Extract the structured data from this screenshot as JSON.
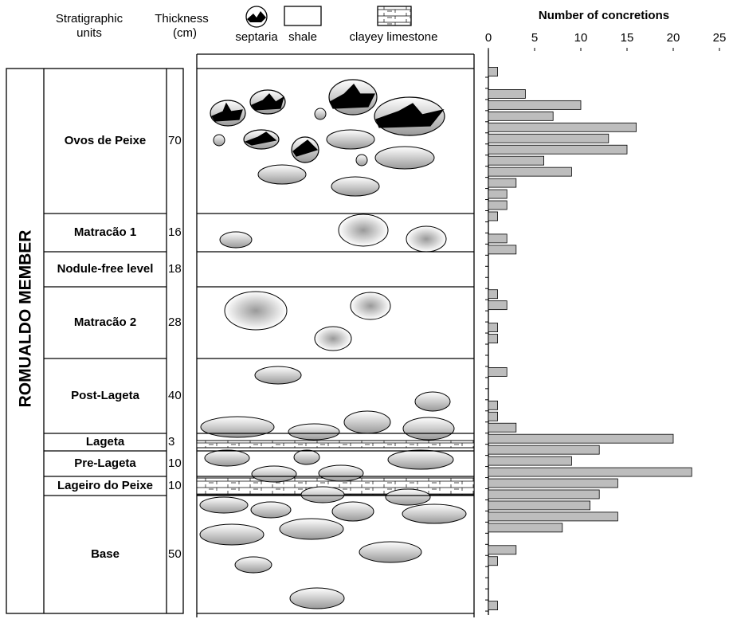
{
  "column": {
    "headers": {
      "units": [
        "Stratigraphic",
        "units"
      ],
      "thickness": [
        "Thickness",
        "(cm)"
      ]
    },
    "legend": [
      "septaria",
      "shale",
      "clayey limestone"
    ],
    "member": "ROMUALDO MEMBER",
    "units": [
      {
        "name": "Ovos de Peixe",
        "thickness": 70
      },
      {
        "name": "Matracão 1",
        "thickness": 16
      },
      {
        "name": "Nodule-free level",
        "thickness": 18
      },
      {
        "name": "Matracão 2",
        "thickness": 28
      },
      {
        "name": "Post-Lageta",
        "thickness": 40
      },
      {
        "name": "Lageta",
        "thickness": 3
      },
      {
        "name": "Pre-Lageta",
        "thickness": 10
      },
      {
        "name": "Lageiro do Peixe",
        "thickness": 10
      },
      {
        "name": "Base",
        "thickness": 50
      }
    ]
  },
  "chart_data": {
    "type": "bar",
    "orientation": "horizontal",
    "title": "Number of concretions",
    "values": [
      1,
      0,
      4,
      10,
      7,
      16,
      13,
      15,
      6,
      9,
      3,
      2,
      2,
      1,
      0,
      2,
      3,
      0,
      0,
      0,
      1,
      2,
      0,
      1,
      1,
      0,
      0,
      2,
      0,
      0,
      1,
      1,
      3,
      20,
      12,
      9,
      22,
      14,
      12,
      11,
      14,
      8,
      0,
      3,
      1,
      0,
      0,
      0,
      1
    ],
    "color": "#bdbdbd",
    "xlim": [
      0,
      25
    ],
    "xticks": [
      0,
      5,
      10,
      15,
      20,
      25
    ]
  }
}
